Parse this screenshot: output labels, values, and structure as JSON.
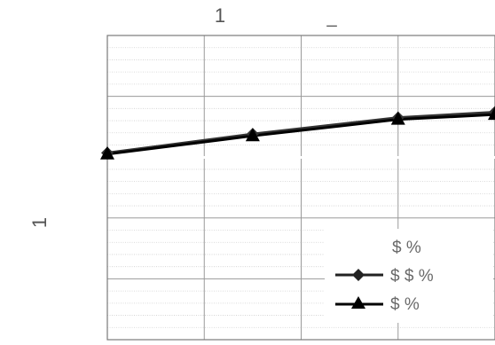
{
  "chart_data": {
    "type": "line",
    "title": "1",
    "title_suffix": "_",
    "ylabel": "1",
    "xlim": [
      0,
      4
    ],
    "ylim": [
      -3,
      2
    ],
    "grid": true,
    "legend_position": "bottom-right",
    "legend_title": "$ %",
    "series": [
      {
        "name": "$ $ %",
        "marker": "diamond",
        "color": "#333333",
        "x": [
          0,
          1.5,
          3,
          4
        ],
        "y": [
          0.07,
          0.38,
          0.65,
          0.74
        ]
      },
      {
        "name": "$ %",
        "marker": "triangle",
        "color": "#000000",
        "x": [
          0,
          1.5,
          3,
          4
        ],
        "y": [
          0.05,
          0.35,
          0.62,
          0.7
        ]
      }
    ]
  }
}
